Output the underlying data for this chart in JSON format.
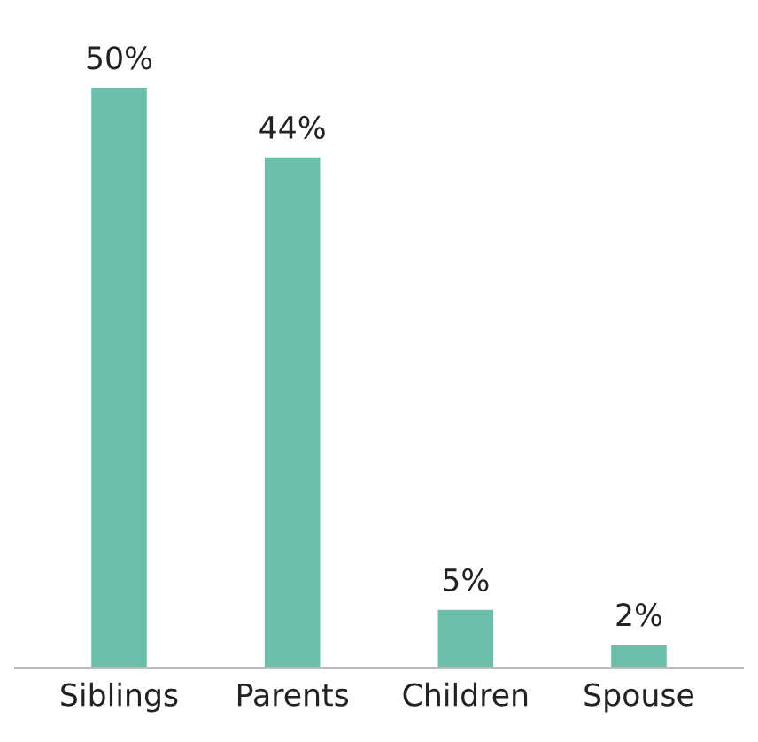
{
  "chart_data": {
    "type": "bar",
    "categories": [
      "Siblings",
      "Parents",
      "Children",
      "Spouse"
    ],
    "values": [
      50,
      44,
      5,
      2
    ],
    "value_labels": [
      "50%",
      "44%",
      "5%",
      "2%"
    ],
    "color": "#6bbfab",
    "grid": false,
    "legend": false
  }
}
